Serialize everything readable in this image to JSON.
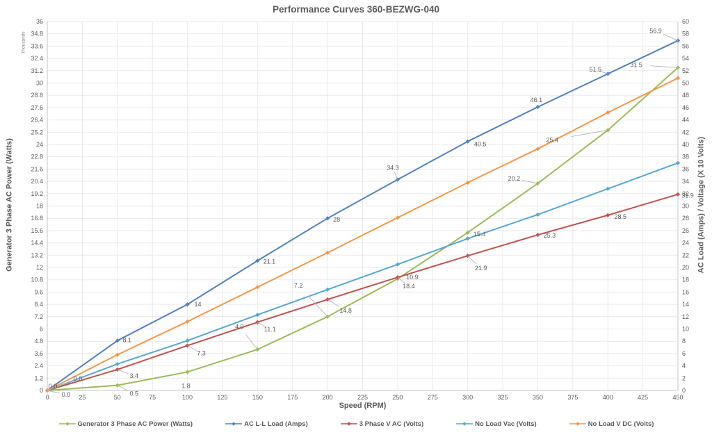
{
  "title": "Performance Curves 360-BEZWG-040",
  "axes": {
    "x": {
      "title": "Speed (RPM)",
      "min": 0,
      "max": 450,
      "step": 25
    },
    "y_left": {
      "title": "Generator 3 Phase AC Power (Watts)",
      "units_note": "Thousands",
      "min": 0,
      "max": 36,
      "step": 1.2
    },
    "y_right": {
      "title": "AC Load (Amps) / Voltage (X 10 Volts)",
      "min": 0,
      "max": 60,
      "step": 2
    }
  },
  "legend": {
    "position": "bottom"
  },
  "colors": {
    "grid": "#e9e9e9",
    "axis_line": "#c3c3c3",
    "leader_line": "#b3b3b3",
    "text": "#595959"
  },
  "chart_data": {
    "type": "line",
    "title": "Performance Curves 360-BEZWG-040",
    "xlabel": "Speed (RPM)",
    "ylabel_left": "Generator 3 Phase AC Power (Watts)",
    "ylabel_right": "AC Load (Amps) / Voltage (X 10 Volts)",
    "x": [
      0,
      50,
      100,
      150,
      200,
      250,
      300,
      350,
      400,
      450
    ],
    "xlim": [
      0,
      450
    ],
    "ylim_left": [
      0,
      36
    ],
    "ylim_right": [
      0,
      60
    ],
    "grid": true,
    "legend_position": "bottom",
    "series": [
      {
        "name": "Generator 3 Phase AC Power (Watts)",
        "axis": "left",
        "color": "#9BBB59",
        "values": [
          0.0,
          0.5,
          1.8,
          4.0,
          7.2,
          10.9,
          15.4,
          20.2,
          25.4,
          31.5
        ],
        "labels": [
          "0.0",
          "0.5",
          "1.8",
          "4.0",
          "7.2",
          "10.9",
          "15.4",
          "20.2",
          "25.4",
          "31.5"
        ],
        "label_dx": [
          27,
          24,
          -2,
          -26,
          -42,
          21,
          17,
          -34,
          -80,
          -60
        ],
        "label_dy": [
          6,
          12,
          20,
          -33,
          -45,
          -2,
          2,
          -7,
          14,
          -4
        ],
        "label_leader": [
          true,
          true,
          false,
          true,
          true,
          false,
          false,
          true,
          true,
          true
        ]
      },
      {
        "name": "AC L-L Load (Amps)",
        "axis": "right",
        "color": "#4F81BD",
        "values": [
          0.0,
          8.1,
          14,
          21.1,
          28,
          34.3,
          40.5,
          46.1,
          51.5,
          56.9
        ],
        "labels": [
          "0.0",
          "8.1",
          "14",
          "21.1",
          "28",
          "34.3",
          "40.5",
          "46.1",
          "51.5",
          "56.9"
        ],
        "label_dx": [
          44,
          14,
          15,
          17,
          13,
          -7,
          18,
          -2,
          -18,
          -32
        ],
        "label_dy": [
          -17,
          -1,
          0,
          1,
          2,
          -17,
          4,
          -10,
          -6,
          -14
        ],
        "label_leader": [
          true,
          false,
          false,
          false,
          false,
          true,
          false,
          false,
          true,
          true
        ]
      },
      {
        "name": "3 Phase V AC  (Volts)",
        "axis": "right",
        "color": "#C0504D",
        "values": [
          0.0,
          3.4,
          7.3,
          11.1,
          14.8,
          18.4,
          21.9,
          25.3,
          28.5,
          31.9
        ],
        "labels": [
          "0.0",
          "3.4",
          "7.3",
          "11.1",
          "14.8",
          "18.4",
          "21.9",
          "25.3",
          "28.5",
          "31.9"
        ],
        "label_dx": [
          8,
          24,
          20,
          18,
          26,
          16,
          19,
          17,
          18,
          14
        ],
        "label_dy": [
          -6,
          9,
          11,
          10,
          16,
          13,
          18,
          1,
          2,
          2
        ],
        "label_leader": [
          false,
          true,
          true,
          true,
          true,
          true,
          true,
          false,
          false,
          false
        ]
      },
      {
        "name": "No Load Vac (Volts)",
        "axis": "right",
        "color": "#55A7D2",
        "values": [
          0.0,
          4.3,
          8.1,
          12.3,
          16.4,
          20.5,
          24.7,
          28.6,
          32.8,
          37.0
        ],
        "labels": null
      },
      {
        "name": "No Load V DC (Volts)",
        "axis": "right",
        "color": "#F79646",
        "values": [
          0.0,
          5.8,
          11.2,
          16.8,
          22.4,
          28.1,
          33.8,
          39.3,
          45.2,
          50.8
        ],
        "labels": null
      }
    ]
  }
}
